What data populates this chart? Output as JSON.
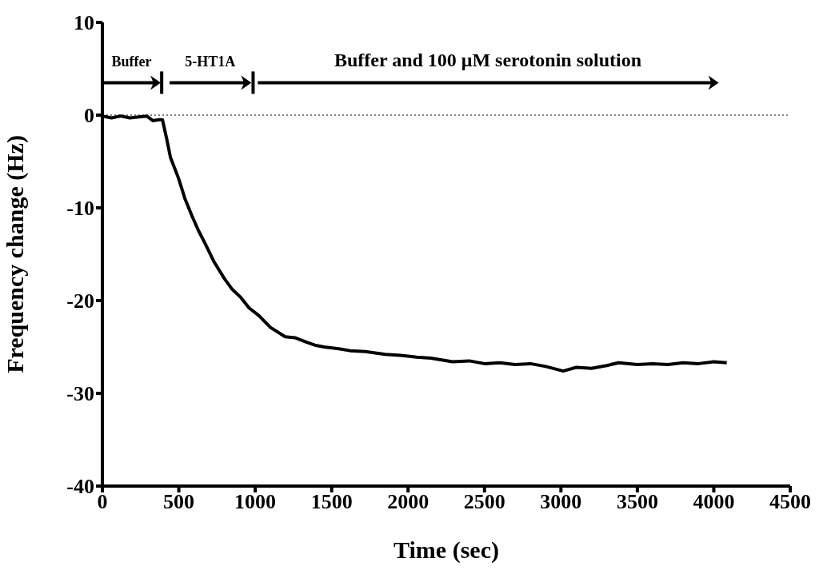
{
  "chart_data": {
    "type": "line",
    "xlabel": "Time (sec)",
    "ylabel": "Frequency change (Hz)",
    "x": [
      0,
      60,
      120,
      180,
      240,
      290,
      330,
      370,
      393,
      420,
      446,
      470,
      498,
      540,
      587,
      630,
      671,
      730,
      797,
      850,
      902,
      960,
      1023,
      1100,
      1196,
      1260,
      1337,
      1390,
      1450,
      1547,
      1620,
      1720,
      1850,
      1950,
      2056,
      2150,
      2291,
      2400,
      2500,
      2600,
      2700,
      2800,
      2900,
      3015,
      3100,
      3200,
      3300,
      3377,
      3500,
      3600,
      3700,
      3800,
      3900,
      4000,
      4085
    ],
    "values": [
      -0.1,
      -0.3,
      -0.1,
      -0.3,
      -0.2,
      -0.1,
      -0.6,
      -0.5,
      -0.5,
      -2.5,
      -4.6,
      -5.6,
      -6.8,
      -9.0,
      -10.9,
      -12.5,
      -13.8,
      -15.8,
      -17.6,
      -18.8,
      -19.6,
      -20.8,
      -21.6,
      -22.9,
      -23.9,
      -24.0,
      -24.5,
      -24.8,
      -25.0,
      -25.2,
      -25.4,
      -25.5,
      -25.8,
      -25.9,
      -26.1,
      -26.2,
      -26.6,
      -26.5,
      -26.8,
      -26.7,
      -26.9,
      -26.8,
      -27.1,
      -27.6,
      -27.2,
      -27.3,
      -27.0,
      -26.7,
      -26.9,
      -26.8,
      -26.9,
      -26.7,
      -26.8,
      -26.6,
      -26.7
    ],
    "color": "#000000",
    "line_style": "solid",
    "marker": "none",
    "xlim": [
      0,
      4500
    ],
    "xticks": [
      0,
      500,
      1000,
      1500,
      2000,
      2500,
      3000,
      3500,
      4000,
      4500
    ],
    "ylim": [
      -40,
      10
    ],
    "yticks": [
      -40,
      -30,
      -20,
      -10,
      0,
      10
    ],
    "ref_lines": [
      {
        "axis": "y",
        "value": 0,
        "line_style": "dotted",
        "color": "#000000"
      }
    ],
    "annotations": [
      "Buffer",
      "5-HT1A",
      "Buffer and 100 μM serotonin solution"
    ]
  }
}
